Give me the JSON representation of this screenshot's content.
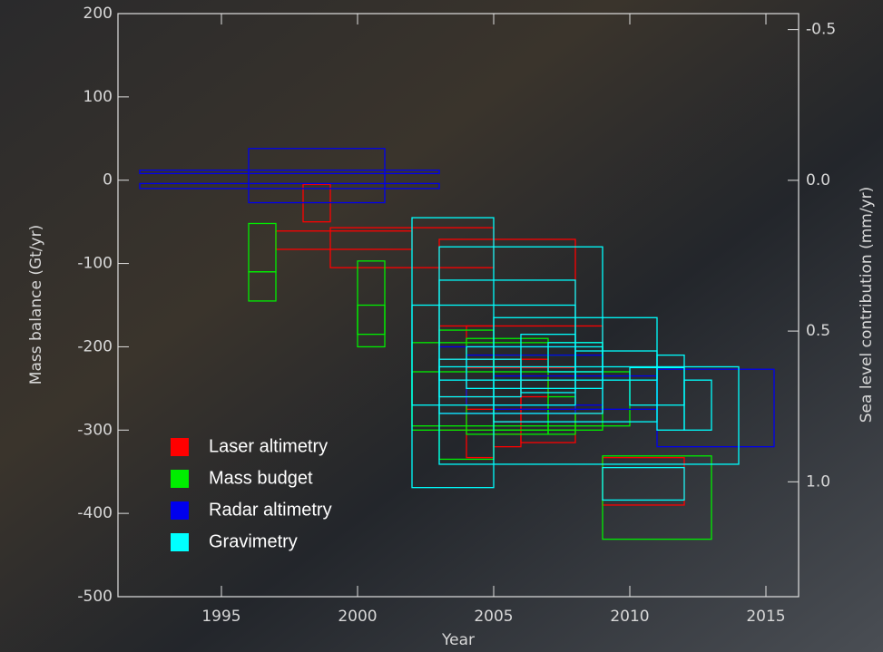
{
  "chart_data": {
    "type": "range-box",
    "x_label": "Year",
    "y_label": "Mass balance (Gt/yr)",
    "y2_label": "Sea level contribution (mm/yr)",
    "xlim": [
      1991.2,
      2016.2
    ],
    "xticks": [
      1995,
      2000,
      2005,
      2010,
      2015
    ],
    "ylim": [
      -500,
      200
    ],
    "yticks": [
      -500,
      -400,
      -300,
      -200,
      -100,
      0,
      100,
      200
    ],
    "y2lim": [
      1.381,
      -0.553
    ],
    "y2ticks": [
      -0.5,
      {
        "value": 0,
        "label": "0.0"
      },
      0.5,
      {
        "value": 1,
        "label": "1.0"
      }
    ],
    "legend": "lower left",
    "series": [
      {
        "name": "Laser altimetry",
        "color": "#ff0000",
        "x_start": [
          1998,
          1997,
          1999,
          2003,
          2004,
          2005,
          2003,
          2006,
          2009,
          2003,
          2004,
          2005
        ],
        "x_end": [
          1999,
          2002,
          2005,
          2008,
          2005,
          2006,
          2009,
          2008,
          2012,
          2007,
          2008,
          2006
        ],
        "low": [
          -50,
          -83,
          -105,
          -300,
          -333,
          -320,
          -280,
          -315,
          -390,
          -260,
          -275,
          -290
        ],
        "high": [
          -5,
          -61,
          -57,
          -71,
          -175,
          -305,
          -175,
          -240,
          -333,
          -215,
          -225,
          -210
        ]
      },
      {
        "name": "Mass budget",
        "color": "#00ee00",
        "x_start": [
          1996,
          1996,
          2000,
          2000,
          2009,
          2003,
          2002,
          2004,
          2005,
          2002,
          2007
        ],
        "x_end": [
          1997,
          1997,
          2001,
          2001,
          2013,
          2005,
          2009,
          2007,
          2008,
          2010,
          2008
        ],
        "low": [
          -145,
          -110,
          -200,
          -185,
          -431,
          -335,
          -300,
          -305,
          -300,
          -295,
          -305
        ],
        "high": [
          -110,
          -52,
          -97,
          -150,
          -331,
          -180,
          -195,
          -190,
          -210,
          -230,
          -260
        ]
      },
      {
        "name": "Radar altimetry",
        "color": "#0000ee",
        "x_start": [
          1992,
          1992,
          1996,
          2011,
          2003,
          2004,
          2005
        ],
        "x_end": [
          2003,
          2003,
          2001,
          2015.3,
          2008,
          2009,
          2011
        ],
        "low": [
          8,
          -10,
          -27,
          -320,
          -280,
          -270,
          -275
        ],
        "high": [
          12,
          -4,
          38,
          -227,
          -200,
          -210,
          -235
        ]
      },
      {
        "name": "Gravimetry",
        "color": "#00ffff",
        "x_start": [
          2002,
          2003,
          2003,
          2005,
          2011,
          2012,
          2009,
          2002,
          2006,
          2003,
          2004,
          2007,
          2008,
          2003,
          2010
        ],
        "x_end": [
          2005,
          2014,
          2009,
          2011,
          2012,
          2013,
          2012,
          2008,
          2008,
          2008,
          2009,
          2009,
          2011,
          2006,
          2012
        ],
        "low": [
          -369,
          -341,
          -280,
          -290,
          -300,
          -300,
          -384,
          -270,
          -255,
          -240,
          -250,
          -230,
          -240,
          -260,
          -270
        ],
        "high": [
          -45,
          -224,
          -80,
          -165,
          -210,
          -240,
          -345,
          -150,
          -185,
          -120,
          -200,
          -195,
          -205,
          -215,
          -225
        ]
      }
    ]
  }
}
